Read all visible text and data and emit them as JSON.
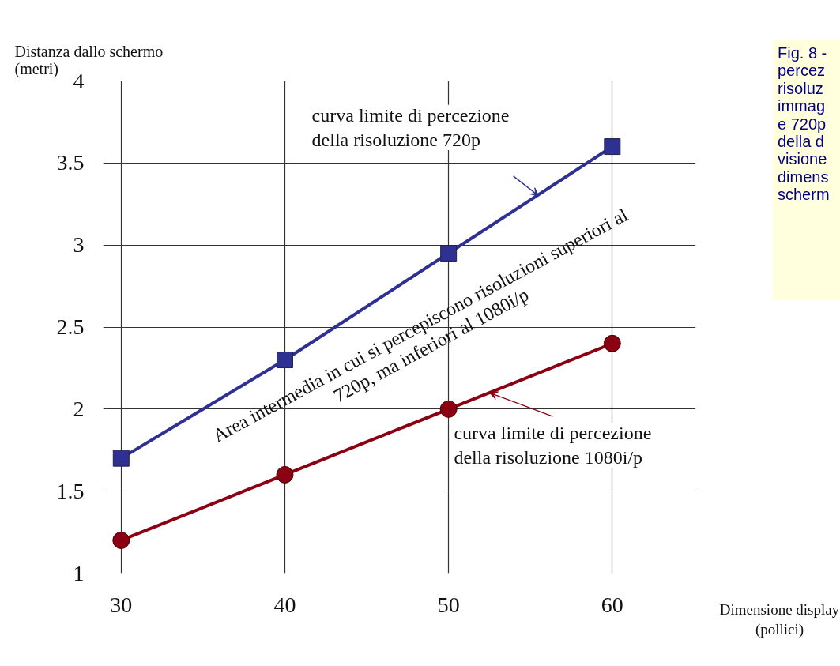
{
  "chart_data": {
    "type": "line",
    "xlabel": "Dimensione display\n(pollici)",
    "ylabel": "Distanza dallo schermo\n(metri)",
    "x": [
      30,
      40,
      50,
      60
    ],
    "series": [
      {
        "color": "#2e3192",
        "values": [
          1.7,
          2.3,
          2.95,
          3.6
        ],
        "marker": "square"
      },
      {
        "color": "#8b0012",
        "values": [
          1.2,
          1.6,
          2.0,
          2.4
        ],
        "marker": "circle"
      }
    ],
    "xlim": [
      28.9,
      65.1
    ],
    "ylim": [
      1,
      4
    ],
    "xticks": [
      30,
      40,
      50,
      60
    ],
    "yticks": [
      1,
      1.5,
      2,
      2.5,
      3,
      3.5,
      4
    ],
    "grid": true,
    "annotations": [
      {
        "text": "curva limite di percezione\ndella risoluzione 720p",
        "x": 55.5,
        "y": 3.3
      },
      {
        "text": "curva limite di percezione\ndella risoluzione 1080i/p",
        "x": 52.5,
        "y": 2.1
      },
      "Area intermedia in cui si percepiscono risoluzioni superiori al\n720p, ma inferiori al 1080i/p",
      "Fig. 8 -\npercez\nrisoluz\nimmag\ne 720p\ndella d\nvisione\ndimens\nscherm"
    ]
  }
}
